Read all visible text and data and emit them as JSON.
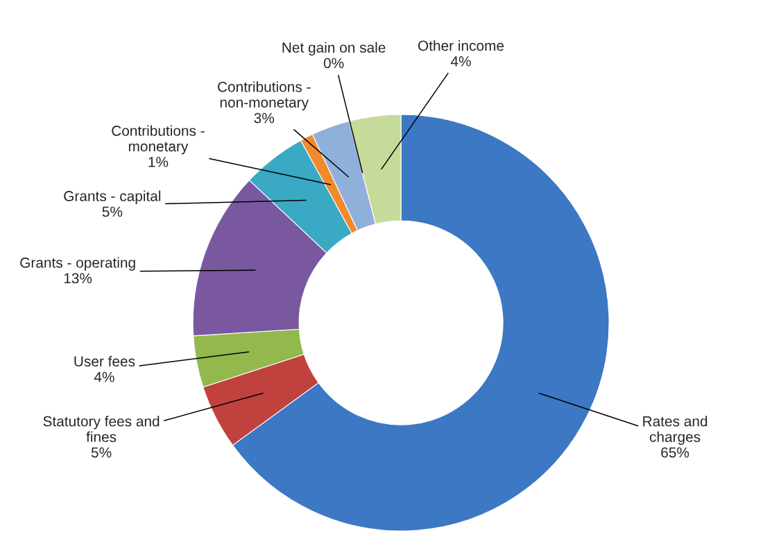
{
  "chart_data": {
    "type": "donut",
    "categories": [
      "Rates and\ncharges",
      "Statutory fees and\nfines",
      "User fees",
      "Grants - operating",
      "Grants - capital",
      "Contributions -\nmonetary",
      "Contributions -\nnon-monetary",
      "Net gain on sale",
      "Other income"
    ],
    "values": [
      65,
      5,
      4,
      13,
      5,
      1,
      3,
      0,
      4
    ],
    "value_labels": [
      "65%",
      "5%",
      "4%",
      "13%",
      "5%",
      "1%",
      "3%",
      "0%",
      "4%"
    ],
    "colors": [
      "#3c78c3",
      "#c0413d",
      "#93b94c",
      "#7a58a0",
      "#3aa9c4",
      "#f08a2c",
      "#90b0dc",
      "#c0504d",
      "#c6da9a"
    ]
  }
}
